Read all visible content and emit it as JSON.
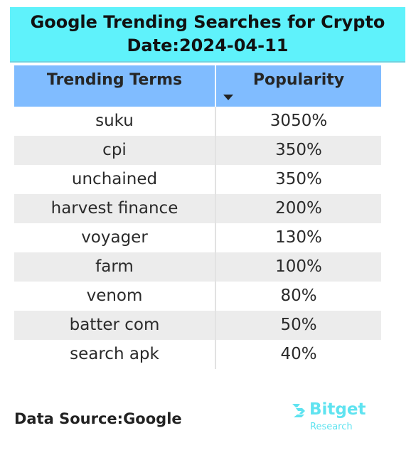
{
  "header": {
    "title": "Google Trending Searches for Crypto",
    "date": "Date:2024-04-11"
  },
  "table": {
    "columns": [
      "Trending Terms",
      "Popularity"
    ],
    "sort_icon": "sort-descending-icon"
  },
  "chart_data": {
    "type": "table",
    "title": "Google Trending Searches for Crypto",
    "subtitle": "Date:2024-04-11",
    "columns": [
      "Trending Terms",
      "Popularity"
    ],
    "rows": [
      [
        "suku",
        "3050%"
      ],
      [
        "cpi",
        "350%"
      ],
      [
        "unchained",
        "350%"
      ],
      [
        "harvest finance",
        "200%"
      ],
      [
        "voyager",
        "130%"
      ],
      [
        "farm",
        "100%"
      ],
      [
        "venom",
        "80%"
      ],
      [
        "batter com",
        "50%"
      ],
      [
        "search apk",
        "40%"
      ]
    ]
  },
  "footer": {
    "source": "Data Source:Google",
    "logo_name": "Bitget",
    "logo_sub": "Research"
  },
  "colors": {
    "title_bg": "#5ff2fb",
    "header_bg": "#80bcff",
    "row_alt_bg": "#ececec",
    "logo": "#5fe3f0"
  }
}
